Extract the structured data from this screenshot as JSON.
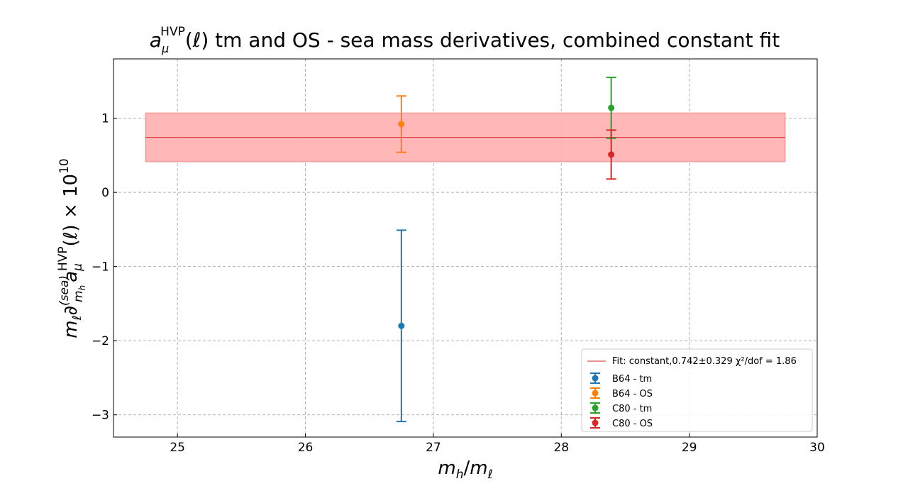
{
  "chart_data": {
    "type": "scatter",
    "title_main": "a",
    "title_sub": "μ",
    "title_sup": "HVP",
    "title_rest": "(ℓ) tm and OS - sea mass derivatives, combined constant fit",
    "xlabel": "m_h/m_ℓ",
    "ylabel": "m_ℓ ∂^(sea)_{m_h} a_μ^HVP(ℓ) × 10^10",
    "xlim": [
      24.5,
      30.0
    ],
    "ylim": [
      -3.3,
      1.8
    ],
    "xticks": [
      25,
      26,
      27,
      28,
      29,
      30
    ],
    "yticks": [
      -3,
      -2,
      -1,
      0,
      1
    ],
    "grid": true,
    "legend_position": "lower right",
    "fit": {
      "label": "Fit: constant,0.742±0.329 χ²/dof = 1.86",
      "value": 0.742,
      "error": 0.329,
      "x_range": [
        24.75,
        29.75
      ],
      "color": "#d62728",
      "band_color": "#ffb3b3"
    },
    "series": [
      {
        "name": "B64 - tm",
        "color": "#1f77b4",
        "x": 26.75,
        "y": -1.8,
        "yerr": 1.29
      },
      {
        "name": "B64 - OS",
        "color": "#ff7f0e",
        "x": 26.75,
        "y": 0.92,
        "yerr": 0.38
      },
      {
        "name": "C80 - tm",
        "color": "#2ca02c",
        "x": 28.39,
        "y": 1.14,
        "yerr": 0.41
      },
      {
        "name": "C80 - OS",
        "color": "#d62728",
        "x": 28.39,
        "y": 0.51,
        "yerr": 0.33
      }
    ]
  }
}
